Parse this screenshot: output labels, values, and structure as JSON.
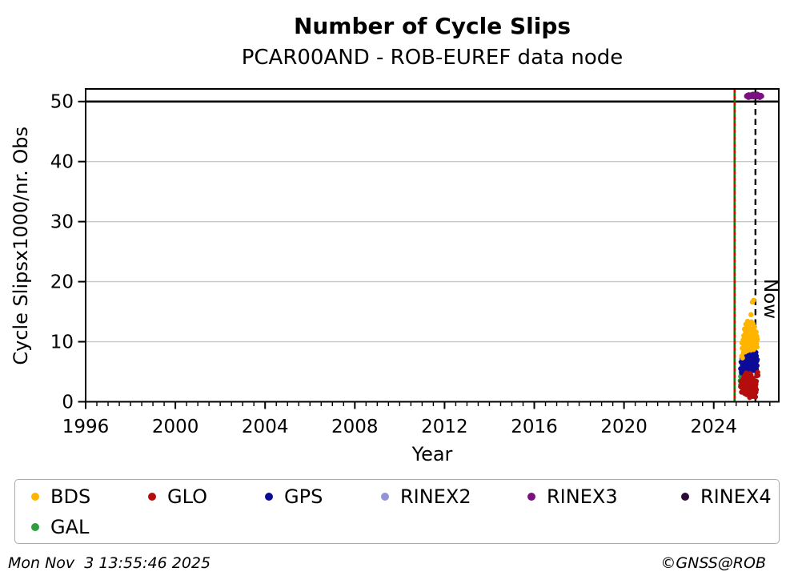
{
  "header": {
    "title": "Number of Cycle Slips",
    "subtitle": "PCAR00AND - ROB-EUREF data node"
  },
  "footer": {
    "timestamp": "Mon Nov  3 13:55:46 2025",
    "credit": "©GNSS@ROB"
  },
  "chart_data": {
    "type": "scatter",
    "title": "Number of Cycle Slips",
    "subtitle": "PCAR00AND - ROB-EUREF data node",
    "xlabel": "Year",
    "ylabel": "Cycle Slipsx1000/nr. Obs",
    "xlim": [
      1996,
      2026.9
    ],
    "ylim": [
      0,
      52.1
    ],
    "xticks": [
      1996,
      2000,
      2004,
      2008,
      2012,
      2016,
      2020,
      2024
    ],
    "yticks": [
      0,
      10,
      20,
      30,
      40,
      50
    ],
    "x_minor_step": 0.5,
    "grid": "horizontal",
    "grid_color": "#c9c9c9",
    "emphasis_hline": 50,
    "vlines": [
      {
        "x": 2024.93,
        "style": "green-red-dashed",
        "label": "",
        "green": "#007d00",
        "red": "#e00000"
      },
      {
        "x": 2025.86,
        "style": "black-dashed",
        "label": "Now"
      }
    ],
    "legend": {
      "position": "bottom",
      "entries": [
        {
          "label": "BDS",
          "color": "#ffb400"
        },
        {
          "label": "GLO",
          "color": "#b50d0d"
        },
        {
          "label": "GPS",
          "color": "#0b0b96"
        },
        {
          "label": "RINEX2",
          "color": "#9393d6"
        },
        {
          "label": "RINEX3",
          "color": "#7b1080"
        },
        {
          "label": "RINEX4",
          "color": "#2c0a33"
        },
        {
          "label": "GAL",
          "color": "#2e9e41"
        }
      ]
    },
    "series": [
      {
        "name": "GAL",
        "color": "#2e9e41",
        "radius": 3.2,
        "points": [
          [
            2025.18,
            3.5
          ],
          [
            2025.2,
            4.2
          ],
          [
            2025.2,
            2.8
          ],
          [
            2025.22,
            5.0
          ],
          [
            2025.22,
            3.1
          ],
          [
            2025.24,
            4.6
          ],
          [
            2025.24,
            2.4
          ],
          [
            2025.26,
            5.3
          ],
          [
            2025.26,
            3.8
          ],
          [
            2025.28,
            4.9
          ],
          [
            2025.3,
            2.6
          ],
          [
            2025.32,
            4.0
          ],
          [
            2025.34,
            3.3
          ],
          [
            2025.4,
            2.9
          ],
          [
            2025.5,
            3.0
          ],
          [
            2025.6,
            4.5
          ],
          [
            2025.7,
            3.6
          ]
        ]
      },
      {
        "name": "GPS",
        "color": "#0b0b96",
        "radius": 3.2,
        "points": [
          [
            2025.2,
            5.5
          ],
          [
            2025.22,
            6.6
          ],
          [
            2025.24,
            4.8
          ],
          [
            2025.26,
            7.2
          ],
          [
            2025.28,
            6.0
          ],
          [
            2025.3,
            5.2
          ],
          [
            2025.31,
            7.0
          ],
          [
            2025.33,
            6.4
          ],
          [
            2025.34,
            8.0
          ],
          [
            2025.35,
            5.6
          ],
          [
            2025.36,
            7.8
          ],
          [
            2025.38,
            6.8
          ],
          [
            2025.39,
            5.0
          ],
          [
            2025.4,
            7.4
          ],
          [
            2025.41,
            8.6
          ],
          [
            2025.42,
            6.2
          ],
          [
            2025.43,
            5.8
          ],
          [
            2025.44,
            7.0
          ],
          [
            2025.45,
            4.4
          ],
          [
            2025.45,
            8.8
          ],
          [
            2025.46,
            6.5
          ],
          [
            2025.47,
            5.3
          ],
          [
            2025.48,
            7.7
          ],
          [
            2025.49,
            9.0
          ],
          [
            2025.5,
            6.9
          ],
          [
            2025.51,
            8.4
          ],
          [
            2025.52,
            5.6
          ],
          [
            2025.53,
            7.2
          ],
          [
            2025.54,
            6.1
          ],
          [
            2025.55,
            9.9
          ],
          [
            2025.55,
            7.9
          ],
          [
            2025.56,
            5.9
          ],
          [
            2025.57,
            8.6
          ],
          [
            2025.58,
            6.7
          ],
          [
            2025.58,
            9.3
          ],
          [
            2025.6,
            5.4
          ],
          [
            2025.6,
            7.5
          ],
          [
            2025.61,
            8.9
          ],
          [
            2025.62,
            6.3
          ],
          [
            2025.63,
            7.1
          ],
          [
            2025.64,
            9.6
          ],
          [
            2025.64,
            5.8
          ],
          [
            2025.65,
            8.0
          ],
          [
            2025.66,
            6.9
          ],
          [
            2025.67,
            7.6
          ],
          [
            2025.68,
            5.5
          ],
          [
            2025.68,
            8.8
          ],
          [
            2025.7,
            6.4
          ],
          [
            2025.7,
            9.2
          ],
          [
            2025.72,
            7.3
          ],
          [
            2025.72,
            5.9
          ],
          [
            2025.74,
            8.1
          ],
          [
            2025.74,
            6.6
          ],
          [
            2025.76,
            7.8
          ],
          [
            2025.76,
            5.2
          ],
          [
            2025.78,
            6.9
          ],
          [
            2025.78,
            8.5
          ],
          [
            2025.8,
            6.0
          ],
          [
            2025.8,
            7.4
          ],
          [
            2025.82,
            5.6
          ],
          [
            2025.82,
            8.9
          ],
          [
            2025.84,
            6.7
          ],
          [
            2025.84,
            7.9
          ],
          [
            2025.86,
            5.9
          ],
          [
            2025.86,
            7.1
          ],
          [
            2025.88,
            6.3
          ],
          [
            2025.88,
            8.2
          ],
          [
            2025.9,
            5.4
          ],
          [
            2025.9,
            7.6
          ],
          [
            2025.92,
            6.8
          ],
          [
            2025.93,
            6.0
          ],
          [
            2025.94,
            7.0
          ]
        ]
      },
      {
        "name": "GLO",
        "color": "#b50d0d",
        "radius": 3.2,
        "points": [
          [
            2025.2,
            2.5
          ],
          [
            2025.22,
            3.4
          ],
          [
            2025.24,
            1.6
          ],
          [
            2025.26,
            2.9
          ],
          [
            2025.28,
            3.0
          ],
          [
            2025.29,
            2.2
          ],
          [
            2025.31,
            3.8
          ],
          [
            2025.33,
            1.8
          ],
          [
            2025.34,
            2.9
          ],
          [
            2025.35,
            4.2
          ],
          [
            2025.37,
            1.4
          ],
          [
            2025.38,
            3.3
          ],
          [
            2025.39,
            2.5
          ],
          [
            2025.4,
            4.5
          ],
          [
            2025.42,
            1.9
          ],
          [
            2025.43,
            3.6
          ],
          [
            2025.44,
            2.8
          ],
          [
            2025.45,
            4.8
          ],
          [
            2025.46,
            1.2
          ],
          [
            2025.46,
            3.1
          ],
          [
            2025.48,
            2.3
          ],
          [
            2025.48,
            4.1
          ],
          [
            2025.5,
            1.7
          ],
          [
            2025.5,
            3.5
          ],
          [
            2025.52,
            2.7
          ],
          [
            2025.52,
            4.6
          ],
          [
            2025.54,
            1.3
          ],
          [
            2025.54,
            3.2
          ],
          [
            2025.56,
            2.4
          ],
          [
            2025.56,
            4.3
          ],
          [
            2025.58,
            1.8
          ],
          [
            2025.58,
            3.7
          ],
          [
            2025.6,
            0.7
          ],
          [
            2025.6,
            2.9
          ],
          [
            2025.62,
            3.4
          ],
          [
            2025.62,
            4.7
          ],
          [
            2025.64,
            2.1
          ],
          [
            2025.64,
            1.5
          ],
          [
            2025.66,
            3.0
          ],
          [
            2025.66,
            4.4
          ],
          [
            2025.68,
            2.6
          ],
          [
            2025.68,
            1.0
          ],
          [
            2025.7,
            3.8
          ],
          [
            2025.7,
            2.0
          ],
          [
            2025.72,
            1.6
          ],
          [
            2025.72,
            3.3
          ],
          [
            2025.74,
            2.8
          ],
          [
            2025.74,
            0.9
          ],
          [
            2025.76,
            2.2
          ],
          [
            2025.76,
            3.9
          ],
          [
            2025.78,
            1.4
          ],
          [
            2025.78,
            2.9
          ],
          [
            2025.8,
            2.1
          ],
          [
            2025.8,
            3.5
          ],
          [
            2025.82,
            1.2
          ],
          [
            2025.82,
            2.6
          ],
          [
            2025.84,
            1.8
          ],
          [
            2025.84,
            3.1
          ],
          [
            2025.86,
            2.4
          ],
          [
            2025.86,
            0.8
          ],
          [
            2025.88,
            1.6
          ],
          [
            2025.88,
            2.9
          ],
          [
            2025.9,
            2.0
          ],
          [
            2025.9,
            3.4
          ],
          [
            2025.92,
            4.3
          ],
          [
            2025.94,
            4.6
          ],
          [
            2025.96,
            4.9
          ],
          [
            2025.97,
            4.4
          ]
        ]
      },
      {
        "name": "BDS",
        "color": "#ffb400",
        "radius": 3.2,
        "points": [
          [
            2025.72,
            16.6
          ],
          [
            2025.78,
            16.9
          ],
          [
            2025.66,
            14.5
          ],
          [
            2025.25,
            7.6
          ],
          [
            2025.26,
            9.8
          ],
          [
            2025.27,
            8.9
          ],
          [
            2025.28,
            7.3
          ],
          [
            2025.3,
            9.0
          ],
          [
            2025.31,
            10.3
          ],
          [
            2025.32,
            8.2
          ],
          [
            2025.34,
            11.0
          ],
          [
            2025.35,
            8.6
          ],
          [
            2025.36,
            9.6
          ],
          [
            2025.37,
            12.1
          ],
          [
            2025.38,
            10.7
          ],
          [
            2025.4,
            8.3
          ],
          [
            2025.41,
            9.3
          ],
          [
            2025.42,
            11.6
          ],
          [
            2025.43,
            12.9
          ],
          [
            2025.44,
            10.0
          ],
          [
            2025.45,
            8.8
          ],
          [
            2025.46,
            11.2
          ],
          [
            2025.47,
            9.7
          ],
          [
            2025.48,
            12.4
          ],
          [
            2025.49,
            10.9
          ],
          [
            2025.5,
            8.5
          ],
          [
            2025.51,
            13.4
          ],
          [
            2025.52,
            9.9
          ],
          [
            2025.53,
            11.7
          ],
          [
            2025.54,
            10.4
          ],
          [
            2025.55,
            8.8
          ],
          [
            2025.56,
            12.7
          ],
          [
            2025.57,
            9.4
          ],
          [
            2025.58,
            13.1
          ],
          [
            2025.59,
            10.8
          ],
          [
            2025.6,
            8.7
          ],
          [
            2025.61,
            11.4
          ],
          [
            2025.62,
            9.9
          ],
          [
            2025.63,
            12.2
          ],
          [
            2025.64,
            10.5
          ],
          [
            2025.65,
            8.6
          ],
          [
            2025.66,
            11.8
          ],
          [
            2025.67,
            9.5
          ],
          [
            2025.68,
            13.3
          ],
          [
            2025.69,
            10.2
          ],
          [
            2025.7,
            8.9
          ],
          [
            2025.71,
            12.0
          ],
          [
            2025.72,
            10.6
          ],
          [
            2025.73,
            9.2
          ],
          [
            2025.74,
            11.5
          ],
          [
            2025.75,
            13.0
          ],
          [
            2025.76,
            9.8
          ],
          [
            2025.77,
            10.9
          ],
          [
            2025.78,
            8.7
          ],
          [
            2025.79,
            11.9
          ],
          [
            2025.8,
            10.3
          ],
          [
            2025.81,
            9.4
          ],
          [
            2025.82,
            12.5
          ],
          [
            2025.83,
            10.8
          ],
          [
            2025.84,
            9.0
          ],
          [
            2025.85,
            11.1
          ],
          [
            2025.86,
            9.9
          ],
          [
            2025.87,
            10.5
          ],
          [
            2025.88,
            9.3
          ],
          [
            2025.89,
            11.6
          ],
          [
            2025.9,
            10.0
          ],
          [
            2025.91,
            9.6
          ],
          [
            2025.92,
            10.9
          ],
          [
            2025.93,
            9.1
          ],
          [
            2025.94,
            10.4
          ]
        ]
      },
      {
        "name": "RINEX3",
        "color": "#7b1080",
        "radius": 3.4,
        "points": [
          [
            2025.47,
            50.9
          ],
          [
            2025.5,
            51.0
          ],
          [
            2025.53,
            50.8
          ],
          [
            2025.56,
            51.1
          ],
          [
            2025.59,
            50.9
          ],
          [
            2025.62,
            51.0
          ],
          [
            2025.65,
            50.8
          ],
          [
            2025.68,
            51.1
          ],
          [
            2025.71,
            50.9
          ],
          [
            2025.74,
            51.0
          ],
          [
            2025.77,
            50.8
          ],
          [
            2025.8,
            51.1
          ],
          [
            2025.83,
            50.9
          ],
          [
            2025.86,
            51.0
          ],
          [
            2025.89,
            50.9
          ],
          [
            2025.92,
            51.1
          ],
          [
            2025.95,
            50.8
          ],
          [
            2025.98,
            51.0
          ],
          [
            2026.01,
            50.9
          ],
          [
            2026.04,
            51.0
          ],
          [
            2026.07,
            50.9
          ],
          [
            2026.1,
            51.0
          ],
          [
            2026.13,
            50.9
          ],
          [
            2025.55,
            50.7
          ],
          [
            2025.75,
            51.2
          ],
          [
            2025.95,
            51.2
          ],
          [
            2026.05,
            50.7
          ]
        ]
      },
      {
        "name": "RINEX2",
        "color": "#9393d6",
        "radius": 3.2,
        "points": []
      },
      {
        "name": "RINEX4",
        "color": "#2c0a33",
        "radius": 3.2,
        "points": []
      }
    ]
  }
}
